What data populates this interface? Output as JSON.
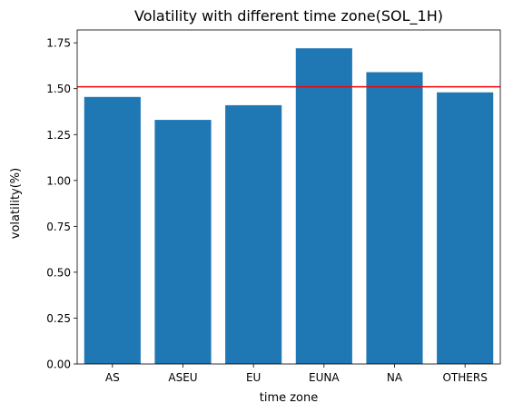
{
  "chart_data": {
    "type": "bar",
    "title": "Volatility with different time zone(SOL_1H)",
    "xlabel": "time zone",
    "ylabel": "volatility(%)",
    "categories": [
      "AS",
      "ASEU",
      "EU",
      "EUNA",
      "NA",
      "OTHERS"
    ],
    "values": [
      1.455,
      1.33,
      1.41,
      1.72,
      1.59,
      1.48
    ],
    "ylim": [
      0,
      1.82
    ],
    "yticks": [
      "0.00",
      "0.25",
      "0.50",
      "0.75",
      "1.00",
      "1.25",
      "1.50",
      "1.75"
    ],
    "reference_line": {
      "y": 1.51,
      "color": "#ff0000"
    },
    "bar_color": "#1f77b4",
    "grid": false,
    "legend": "none"
  }
}
